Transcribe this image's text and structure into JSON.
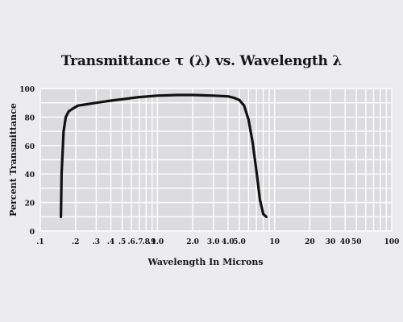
{
  "chart_data": {
    "type": "line",
    "title": "Transmittance τ (λ)  vs. Wavelength λ",
    "xlabel": "Wavelength In Microns",
    "ylabel": "Percent Transmittance",
    "xscale": "log",
    "xlim": [
      0.1,
      100
    ],
    "ylim": [
      0,
      100
    ],
    "grid": true,
    "x_ticks": [
      {
        "value": 0.1,
        "label": ".1"
      },
      {
        "value": 0.2,
        "label": ".2"
      },
      {
        "value": 0.3,
        "label": ".3"
      },
      {
        "value": 0.4,
        "label": ".4"
      },
      {
        "value": 0.5,
        "label": ".5"
      },
      {
        "value": 0.6,
        "label": ".6"
      },
      {
        "value": 0.7,
        "label": ".7"
      },
      {
        "value": 0.8,
        "label": ".8"
      },
      {
        "value": 0.9,
        "label": ".9"
      },
      {
        "value": 1.0,
        "label": "1.0"
      },
      {
        "value": 2.0,
        "label": "2.0"
      },
      {
        "value": 3.0,
        "label": "3.0"
      },
      {
        "value": 4.0,
        "label": "4.0"
      },
      {
        "value": 5.0,
        "label": "5.0"
      },
      {
        "value": 10,
        "label": "10"
      },
      {
        "value": 20,
        "label": "20"
      },
      {
        "value": 30,
        "label": "30"
      },
      {
        "value": 40,
        "label": "40"
      },
      {
        "value": 50,
        "label": "50"
      },
      {
        "value": 100,
        "label": "100"
      }
    ],
    "y_ticks": [
      {
        "value": 0,
        "label": "0"
      },
      {
        "value": 20,
        "label": "20"
      },
      {
        "value": 40,
        "label": "40"
      },
      {
        "value": 60,
        "label": "60"
      },
      {
        "value": 80,
        "label": "80"
      },
      {
        "value": 100,
        "label": "100"
      }
    ],
    "series": [
      {
        "color": "#111111",
        "x": [
          0.15,
          0.152,
          0.158,
          0.165,
          0.175,
          0.19,
          0.21,
          0.25,
          0.3,
          0.4,
          0.5,
          0.7,
          1.0,
          1.5,
          2.0,
          3.0,
          4.0,
          4.5,
          5.0,
          5.5,
          6.0,
          6.5,
          7.0,
          7.5,
          8.0,
          8.5
        ],
        "y": [
          10,
          40,
          70,
          80,
          84,
          86,
          88,
          89,
          90,
          91.5,
          92.5,
          94,
          95,
          95.5,
          95.5,
          95,
          94.5,
          93.5,
          92,
          88,
          78,
          62,
          42,
          22,
          12,
          10
        ]
      }
    ]
  },
  "colors": {
    "background": "#ececef",
    "plot_background": "#dcdcde",
    "grid": "#ffffff",
    "line": "#111111",
    "text": "#151515"
  }
}
